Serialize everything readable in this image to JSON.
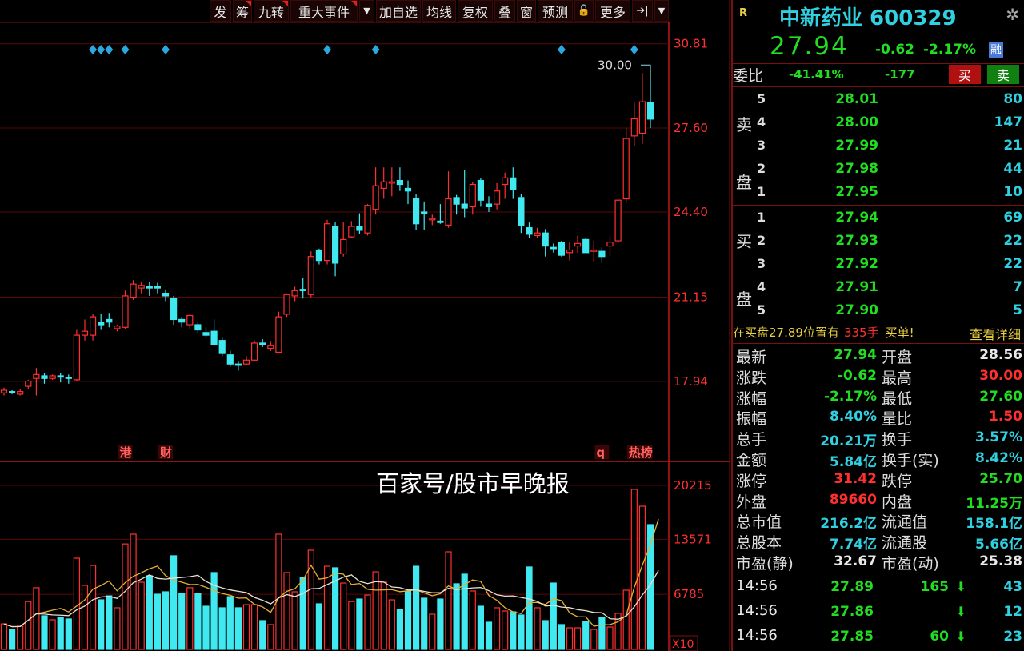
{
  "toolbar": {
    "items": [
      "发",
      "筹",
      "九转",
      "重大事件",
      "▼",
      "加自选",
      "均线",
      "复权",
      "叠",
      "窗",
      "预测",
      "🔓",
      "更多",
      "➔|",
      "▼"
    ]
  },
  "stock": {
    "flag": "R",
    "title": "中新药业 600329",
    "price": "27.94",
    "change": "-0.62",
    "change_pct": "-2.17%",
    "badge": "融",
    "weibi_label": "委比",
    "weibi_pct": "-41.41%",
    "weicha": "-177",
    "buy_button": "买",
    "sell_button": "卖"
  },
  "orderbook": {
    "sell_label": [
      "卖",
      "盘"
    ],
    "buy_label": [
      "买",
      "盘"
    ],
    "sell": [
      {
        "level": "5",
        "price": "28.01",
        "vol": "80"
      },
      {
        "level": "4",
        "price": "28.00",
        "vol": "147"
      },
      {
        "level": "3",
        "price": "27.99",
        "vol": "21"
      },
      {
        "level": "2",
        "price": "27.98",
        "vol": "44"
      },
      {
        "level": "1",
        "price": "27.95",
        "vol": "10"
      }
    ],
    "buy": [
      {
        "level": "1",
        "price": "27.94",
        "vol": "69"
      },
      {
        "level": "2",
        "price": "27.93",
        "vol": "22"
      },
      {
        "level": "3",
        "price": "27.92",
        "vol": "22"
      },
      {
        "level": "4",
        "price": "27.91",
        "vol": "7"
      },
      {
        "level": "5",
        "price": "27.90",
        "vol": "5"
      }
    ]
  },
  "notice": {
    "pre": "在买盘27.89位置有",
    "qty": "335手",
    "post": "买单!",
    "link": "查看详细"
  },
  "stats": [
    {
      "l1": "最新",
      "v1": "27.94",
      "c1": "g",
      "l2": "开盘",
      "v2": "28.56",
      "c2": "w"
    },
    {
      "l1": "涨跌",
      "v1": "-0.62",
      "c1": "g",
      "l2": "最高",
      "v2": "30.00",
      "c2": "r"
    },
    {
      "l1": "涨幅",
      "v1": "-2.17%",
      "c1": "g",
      "l2": "最低",
      "v2": "27.60",
      "c2": "g"
    },
    {
      "l1": "振幅",
      "v1": "8.40%",
      "c1": "c",
      "l2": "量比",
      "v2": "1.50",
      "c2": "r"
    },
    {
      "l1": "总手",
      "v1": "20.21万",
      "c1": "c",
      "l2": "换手",
      "v2": "3.57%",
      "c2": "c"
    },
    {
      "l1": "金额",
      "v1": "5.84亿",
      "c1": "c",
      "l2": "换手(实)",
      "v2": "8.42%",
      "c2": "c"
    },
    {
      "l1": "涨停",
      "v1": "31.42",
      "c1": "r",
      "l2": "跌停",
      "v2": "25.70",
      "c2": "g"
    },
    {
      "l1": "外盘",
      "v1": "89660",
      "c1": "r",
      "l2": "内盘",
      "v2": "11.25万",
      "c2": "g"
    },
    {
      "l1": "总市值",
      "v1": "216.2亿",
      "c1": "c",
      "l2": "流通值",
      "v2": "158.1亿",
      "c2": "c"
    },
    {
      "l1": "总股本",
      "v1": "7.74亿",
      "c1": "c",
      "l2": "流通股",
      "v2": "5.66亿",
      "c2": "c"
    },
    {
      "l1": "市盈(静)",
      "v1": "32.67",
      "c1": "w",
      "l2": "市盈(动)",
      "v2": "25.38",
      "c2": "w"
    }
  ],
  "ticks": [
    {
      "time": "14:56",
      "price": "27.89",
      "vol": "165",
      "dir": "down",
      "num": "43"
    },
    {
      "time": "14:56",
      "price": "27.86",
      "vol": "",
      "dir": "down",
      "num": "12"
    },
    {
      "time": "14:56",
      "price": "27.85",
      "vol": "60",
      "dir": "down",
      "num": "23"
    }
  ],
  "watermark": "百家号/股市早晚报",
  "colors": {
    "up": "#ff3030",
    "down": "#40e8f0",
    "grid": "#5a0808",
    "axis": "#ff3030",
    "ma5": "#e8b030",
    "ma10": "#e8e0d0",
    "diamond": "#2aa8e0"
  },
  "chart_data": {
    "type": "candlestick",
    "price_axis_ticks": [
      {
        "value": 30.81,
        "label": "30.81"
      },
      {
        "value": 27.6,
        "label": "27.60"
      },
      {
        "value": 24.4,
        "label": "24.40"
      },
      {
        "value": 21.15,
        "label": "21.15"
      },
      {
        "value": 17.94,
        "label": "17.94"
      }
    ],
    "high_annotation": "30.00",
    "volume_axis_ticks": [
      {
        "value": 20215,
        "label": "20215"
      },
      {
        "value": 13571,
        "label": "13571"
      },
      {
        "value": 6785,
        "label": "6785"
      }
    ],
    "volume_unit": "X10",
    "volume_ma": [
      5,
      10
    ],
    "event_marker_candles": [
      11,
      12,
      13,
      15,
      20,
      40,
      46,
      69,
      78
    ],
    "event_tags": [
      {
        "candle": 15,
        "text": "港"
      },
      {
        "candle": 20,
        "text": "财"
      },
      {
        "candle": 74,
        "text": "q"
      },
      {
        "candle": 78,
        "text": "热榜"
      }
    ],
    "ohlc": [
      [
        17.5,
        17.7,
        17.4,
        17.6
      ],
      [
        17.55,
        17.6,
        17.45,
        17.5
      ],
      [
        17.45,
        17.65,
        17.4,
        17.55
      ],
      [
        17.75,
        18.0,
        17.65,
        17.95
      ],
      [
        18.05,
        18.45,
        17.4,
        18.2
      ],
      [
        18.15,
        18.25,
        17.85,
        18.05
      ],
      [
        18.05,
        18.2,
        18.0,
        18.15
      ],
      [
        18.15,
        18.25,
        17.9,
        18.1
      ],
      [
        18.1,
        18.2,
        17.85,
        18.05
      ],
      [
        18.0,
        19.9,
        17.95,
        19.7
      ],
      [
        19.7,
        20.3,
        19.5,
        19.85
      ],
      [
        19.7,
        20.5,
        19.5,
        20.4
      ],
      [
        20.2,
        20.5,
        19.9,
        20.1
      ],
      [
        20.3,
        20.55,
        20.0,
        20.2
      ],
      [
        19.95,
        20.1,
        19.85,
        20.05
      ],
      [
        20.0,
        21.4,
        19.95,
        21.2
      ],
      [
        21.15,
        21.8,
        21.05,
        21.65
      ],
      [
        21.5,
        21.75,
        21.3,
        21.6
      ],
      [
        21.55,
        21.75,
        21.2,
        21.5
      ],
      [
        21.55,
        21.7,
        21.3,
        21.5
      ],
      [
        21.3,
        21.45,
        21.0,
        21.2
      ],
      [
        21.1,
        21.2,
        20.1,
        20.3
      ],
      [
        20.3,
        20.4,
        20.0,
        20.2
      ],
      [
        20.1,
        20.5,
        19.95,
        20.45
      ],
      [
        20.1,
        20.2,
        19.8,
        19.9
      ],
      [
        19.8,
        20.0,
        19.6,
        19.7
      ],
      [
        19.85,
        20.3,
        19.3,
        19.35
      ],
      [
        19.5,
        19.6,
        18.9,
        19.0
      ],
      [
        18.95,
        19.1,
        18.5,
        18.6
      ],
      [
        18.6,
        18.7,
        18.35,
        18.55
      ],
      [
        18.6,
        18.9,
        18.55,
        18.75
      ],
      [
        18.75,
        19.5,
        18.7,
        19.4
      ],
      [
        19.4,
        19.55,
        19.25,
        19.35
      ],
      [
        19.2,
        19.45,
        19.1,
        19.3
      ],
      [
        19.05,
        20.6,
        19.0,
        20.4
      ],
      [
        20.5,
        21.3,
        20.4,
        21.25
      ],
      [
        21.2,
        21.55,
        21.0,
        21.4
      ],
      [
        21.45,
        21.9,
        21.1,
        21.4
      ],
      [
        21.25,
        22.9,
        21.15,
        22.7
      ],
      [
        22.95,
        23.0,
        22.4,
        22.55
      ],
      [
        22.55,
        24.1,
        22.4,
        23.95
      ],
      [
        23.85,
        24.0,
        21.95,
        22.45
      ],
      [
        22.8,
        24.0,
        22.7,
        23.35
      ],
      [
        23.45,
        24.05,
        23.4,
        23.85
      ],
      [
        23.85,
        24.35,
        23.55,
        23.7
      ],
      [
        23.6,
        24.7,
        23.5,
        24.65
      ],
      [
        24.5,
        26.1,
        24.3,
        25.4
      ],
      [
        25.3,
        26.1,
        24.9,
        25.55
      ],
      [
        25.5,
        26.1,
        25.0,
        25.55
      ],
      [
        25.6,
        26.1,
        25.2,
        25.45
      ],
      [
        25.3,
        25.6,
        24.7,
        25.2
      ],
      [
        24.9,
        25.1,
        23.7,
        23.95
      ],
      [
        24.4,
        24.8,
        23.7,
        24.35
      ],
      [
        24.1,
        24.3,
        23.9,
        24.15
      ],
      [
        24.05,
        24.7,
        23.95,
        24.0
      ],
      [
        23.9,
        25.95,
        23.8,
        24.9
      ],
      [
        24.95,
        25.05,
        24.3,
        24.7
      ],
      [
        24.7,
        26.0,
        24.2,
        24.55
      ],
      [
        24.6,
        25.55,
        24.3,
        25.45
      ],
      [
        25.6,
        25.7,
        24.6,
        24.85
      ],
      [
        24.7,
        25.0,
        24.4,
        24.6
      ],
      [
        24.7,
        25.5,
        24.5,
        25.2
      ],
      [
        25.45,
        25.9,
        24.9,
        25.7
      ],
      [
        25.7,
        26.1,
        24.9,
        25.25
      ],
      [
        24.95,
        25.1,
        23.6,
        23.9
      ],
      [
        23.8,
        24.0,
        23.4,
        23.55
      ],
      [
        23.5,
        23.8,
        23.4,
        23.6
      ],
      [
        23.6,
        23.75,
        22.7,
        23.1
      ],
      [
        23.05,
        23.2,
        22.85,
        23.0
      ],
      [
        23.25,
        23.3,
        22.7,
        22.75
      ],
      [
        22.85,
        23.25,
        22.55,
        22.95
      ],
      [
        23.1,
        23.5,
        22.85,
        23.2
      ],
      [
        23.35,
        23.4,
        22.85,
        22.85
      ],
      [
        22.9,
        23.3,
        22.5,
        22.95
      ],
      [
        22.9,
        23.05,
        22.45,
        22.7
      ],
      [
        23.1,
        23.5,
        22.7,
        23.25
      ],
      [
        23.3,
        24.9,
        23.2,
        24.85
      ],
      [
        24.9,
        27.6,
        24.8,
        27.2
      ],
      [
        27.3,
        28.6,
        26.9,
        27.95
      ],
      [
        27.4,
        29.7,
        27.0,
        28.6
      ],
      [
        28.56,
        30.0,
        27.6,
        27.94
      ]
    ],
    "volume": [
      3150,
      2460,
      2860,
      5900,
      7600,
      4140,
      3650,
      3940,
      3750,
      11240,
      7890,
      10350,
      6110,
      6600,
      5130,
      13000,
      14200,
      8280,
      9070,
      6800,
      7100,
      11540,
      6900,
      7600,
      6900,
      5320,
      9470,
      5130,
      6500,
      5130,
      5520,
      5520,
      3550,
      3060,
      14200,
      9470,
      7100,
      8870,
      12230,
      5620,
      10250,
      10060,
      8180,
      5900,
      6210,
      6700,
      9560,
      8280,
      6110,
      4930,
      7200,
      10250,
      6310,
      4340,
      6210,
      12030,
      8090,
      9270,
      7200,
      5320,
      3350,
      5130,
      4730,
      4630,
      4240,
      10160,
      5130,
      3550,
      8180,
      3060,
      2660,
      2660,
      3450,
      2460,
      3940,
      2760,
      4440,
      7300,
      19720,
      17650,
      15380,
      20215
    ]
  }
}
